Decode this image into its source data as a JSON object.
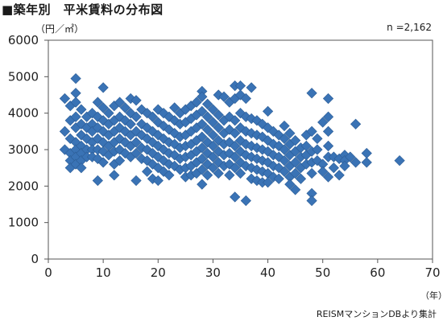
{
  "page": {
    "title": "■築年別　平米賃料の分布図",
    "unit_label": "（円／㎡）",
    "n_label": "n =2,162",
    "x_unit": "（年）",
    "source": "REISMマンションDBより集計"
  },
  "colors": {
    "marker": "#3a73b5",
    "marker_edge": "#2c5d96",
    "plot_bg": "#ffffff",
    "axis": "#555555",
    "outer_bg": "#e9e9e9"
  },
  "chart_data": {
    "type": "scatter",
    "title": "築年別　平米賃料の分布図",
    "xlabel": "（年）",
    "ylabel": "（円／㎡）",
    "xlim": [
      0,
      70
    ],
    "ylim": [
      0,
      6000
    ],
    "xticks": [
      0,
      10,
      20,
      30,
      40,
      50,
      60,
      70
    ],
    "yticks": [
      0,
      1000,
      2000,
      3000,
      4000,
      5000,
      6000
    ],
    "xtick_labels": [
      "0",
      "10",
      "20",
      "30",
      "40",
      "50",
      "60",
      "70"
    ],
    "ytick_labels": [
      "0",
      "1000",
      "2000",
      "3000",
      "4000",
      "5000",
      "6000"
    ],
    "grid": false,
    "marker": "diamond",
    "n": "2,162",
    "series": [
      {
        "points": [
          [
            3,
            4400
          ],
          [
            3,
            3500
          ],
          [
            3,
            3000
          ],
          [
            4,
            4200
          ],
          [
            4,
            3800
          ],
          [
            4,
            3300
          ],
          [
            4,
            2900
          ],
          [
            4,
            2700
          ],
          [
            4,
            2500
          ],
          [
            5,
            4950
          ],
          [
            5,
            4550
          ],
          [
            5,
            4300
          ],
          [
            5,
            3900
          ],
          [
            5,
            3600
          ],
          [
            5,
            3200
          ],
          [
            5,
            3000
          ],
          [
            5,
            2800
          ],
          [
            5,
            2600
          ],
          [
            6,
            4100
          ],
          [
            6,
            3700
          ],
          [
            6,
            3400
          ],
          [
            6,
            3100
          ],
          [
            6,
            2900
          ],
          [
            6,
            2700
          ],
          [
            6,
            2500
          ],
          [
            7,
            3900
          ],
          [
            7,
            3600
          ],
          [
            7,
            3300
          ],
          [
            7,
            3000
          ],
          [
            7,
            2800
          ],
          [
            8,
            4000
          ],
          [
            8,
            3700
          ],
          [
            8,
            3500
          ],
          [
            8,
            3200
          ],
          [
            8,
            3000
          ],
          [
            8,
            2800
          ],
          [
            9,
            4300
          ],
          [
            9,
            3900
          ],
          [
            9,
            3600
          ],
          [
            9,
            3300
          ],
          [
            9,
            3000
          ],
          [
            9,
            2750
          ],
          [
            9,
            2150
          ],
          [
            10,
            4700
          ],
          [
            10,
            4150
          ],
          [
            10,
            3800
          ],
          [
            10,
            3500
          ],
          [
            10,
            3200
          ],
          [
            10,
            2950
          ],
          [
            10,
            2650
          ],
          [
            11,
            4000
          ],
          [
            11,
            3700
          ],
          [
            11,
            3400
          ],
          [
            11,
            3100
          ],
          [
            11,
            2850
          ],
          [
            12,
            4200
          ],
          [
            12,
            3800
          ],
          [
            12,
            3500
          ],
          [
            12,
            3200
          ],
          [
            12,
            2950
          ],
          [
            12,
            2600
          ],
          [
            12,
            2300
          ],
          [
            13,
            4300
          ],
          [
            13,
            3900
          ],
          [
            13,
            3600
          ],
          [
            13,
            3300
          ],
          [
            13,
            3000
          ],
          [
            13,
            2700
          ],
          [
            14,
            4150
          ],
          [
            14,
            3800
          ],
          [
            14,
            3500
          ],
          [
            14,
            3200
          ],
          [
            14,
            2900
          ],
          [
            15,
            4400
          ],
          [
            15,
            4000
          ],
          [
            15,
            3700
          ],
          [
            15,
            3400
          ],
          [
            15,
            3100
          ],
          [
            15,
            2800
          ],
          [
            16,
            4350
          ],
          [
            16,
            3900
          ],
          [
            16,
            3500
          ],
          [
            16,
            3200
          ],
          [
            16,
            2900
          ],
          [
            16,
            2150
          ],
          [
            17,
            4100
          ],
          [
            17,
            3700
          ],
          [
            17,
            3400
          ],
          [
            17,
            3050
          ],
          [
            17,
            2750
          ],
          [
            18,
            4000
          ],
          [
            18,
            3600
          ],
          [
            18,
            3300
          ],
          [
            18,
            3000
          ],
          [
            18,
            2700
          ],
          [
            18,
            2400
          ],
          [
            19,
            3900
          ],
          [
            19,
            3500
          ],
          [
            19,
            3200
          ],
          [
            19,
            2900
          ],
          [
            19,
            2600
          ],
          [
            19,
            2200
          ],
          [
            20,
            4100
          ],
          [
            20,
            3750
          ],
          [
            20,
            3400
          ],
          [
            20,
            3100
          ],
          [
            20,
            2800
          ],
          [
            20,
            2500
          ],
          [
            20,
            2150
          ],
          [
            21,
            4000
          ],
          [
            21,
            3650
          ],
          [
            21,
            3300
          ],
          [
            21,
            3000
          ],
          [
            21,
            2700
          ],
          [
            21,
            2400
          ],
          [
            22,
            3900
          ],
          [
            22,
            3550
          ],
          [
            22,
            3200
          ],
          [
            22,
            2900
          ],
          [
            22,
            2600
          ],
          [
            22,
            2300
          ],
          [
            23,
            4150
          ],
          [
            23,
            3800
          ],
          [
            23,
            3450
          ],
          [
            23,
            3150
          ],
          [
            23,
            2850
          ],
          [
            23,
            2550
          ],
          [
            24,
            4000
          ],
          [
            24,
            3700
          ],
          [
            24,
            3350
          ],
          [
            24,
            3050
          ],
          [
            24,
            2750
          ],
          [
            24,
            2450
          ],
          [
            25,
            4100
          ],
          [
            25,
            3750
          ],
          [
            25,
            3400
          ],
          [
            25,
            3100
          ],
          [
            25,
            2800
          ],
          [
            25,
            2500
          ],
          [
            25,
            2250
          ],
          [
            26,
            4200
          ],
          [
            26,
            3850
          ],
          [
            26,
            3500
          ],
          [
            26,
            3150
          ],
          [
            26,
            2850
          ],
          [
            26,
            2550
          ],
          [
            26,
            2300
          ],
          [
            27,
            4300
          ],
          [
            27,
            3950
          ],
          [
            27,
            3600
          ],
          [
            27,
            3250
          ],
          [
            27,
            2950
          ],
          [
            27,
            2650
          ],
          [
            27,
            2350
          ],
          [
            28,
            4600
          ],
          [
            28,
            4450
          ],
          [
            28,
            4050
          ],
          [
            28,
            3700
          ],
          [
            28,
            3350
          ],
          [
            28,
            3050
          ],
          [
            28,
            2750
          ],
          [
            28,
            2450
          ],
          [
            28,
            2050
          ],
          [
            29,
            4250
          ],
          [
            29,
            3900
          ],
          [
            29,
            3550
          ],
          [
            29,
            3200
          ],
          [
            29,
            2900
          ],
          [
            29,
            2600
          ],
          [
            29,
            2300
          ],
          [
            30,
            4100
          ],
          [
            30,
            3750
          ],
          [
            30,
            3400
          ],
          [
            30,
            3100
          ],
          [
            30,
            2800
          ],
          [
            30,
            2500
          ],
          [
            31,
            4500
          ],
          [
            31,
            3950
          ],
          [
            31,
            3600
          ],
          [
            31,
            3250
          ],
          [
            31,
            2950
          ],
          [
            31,
            2650
          ],
          [
            31,
            2350
          ],
          [
            32,
            4450
          ],
          [
            32,
            3800
          ],
          [
            32,
            3450
          ],
          [
            32,
            3150
          ],
          [
            32,
            2850
          ],
          [
            32,
            2550
          ],
          [
            33,
            4300
          ],
          [
            33,
            3900
          ],
          [
            33,
            3550
          ],
          [
            33,
            3200
          ],
          [
            33,
            2900
          ],
          [
            33,
            2600
          ],
          [
            33,
            2300
          ],
          [
            34,
            4750
          ],
          [
            34,
            4400
          ],
          [
            34,
            3800
          ],
          [
            34,
            3450
          ],
          [
            34,
            3100
          ],
          [
            34,
            2800
          ],
          [
            34,
            2500
          ],
          [
            34,
            1700
          ],
          [
            35,
            4750
          ],
          [
            35,
            4500
          ],
          [
            35,
            4000
          ],
          [
            35,
            3600
          ],
          [
            35,
            3250
          ],
          [
            35,
            2950
          ],
          [
            35,
            2650
          ],
          [
            35,
            2350
          ],
          [
            36,
            4400
          ],
          [
            36,
            3900
          ],
          [
            36,
            3500
          ],
          [
            36,
            3150
          ],
          [
            36,
            2850
          ],
          [
            36,
            2550
          ],
          [
            36,
            1600
          ],
          [
            37,
            4700
          ],
          [
            37,
            3850
          ],
          [
            37,
            3450
          ],
          [
            37,
            3100
          ],
          [
            37,
            2800
          ],
          [
            37,
            2500
          ],
          [
            37,
            2200
          ],
          [
            38,
            3800
          ],
          [
            38,
            3400
          ],
          [
            38,
            3050
          ],
          [
            38,
            2750
          ],
          [
            38,
            2450
          ],
          [
            38,
            2150
          ],
          [
            39,
            3700
          ],
          [
            39,
            3350
          ],
          [
            39,
            3000
          ],
          [
            39,
            2700
          ],
          [
            39,
            2400
          ],
          [
            39,
            2100
          ],
          [
            40,
            4050
          ],
          [
            40,
            3600
          ],
          [
            40,
            3250
          ],
          [
            40,
            2950
          ],
          [
            40,
            2650
          ],
          [
            40,
            2350
          ],
          [
            40,
            2100
          ],
          [
            41,
            3500
          ],
          [
            41,
            3150
          ],
          [
            41,
            2850
          ],
          [
            41,
            2550
          ],
          [
            41,
            2250
          ],
          [
            42,
            3400
          ],
          [
            42,
            3100
          ],
          [
            42,
            2800
          ],
          [
            42,
            2500
          ],
          [
            42,
            2200
          ],
          [
            43,
            3650
          ],
          [
            43,
            3300
          ],
          [
            43,
            3000
          ],
          [
            43,
            2700
          ],
          [
            43,
            2400
          ],
          [
            44,
            3450
          ],
          [
            44,
            3150
          ],
          [
            44,
            2850
          ],
          [
            44,
            2550
          ],
          [
            44,
            2250
          ],
          [
            44,
            2050
          ],
          [
            45,
            3250
          ],
          [
            45,
            2950
          ],
          [
            45,
            2650
          ],
          [
            45,
            2350
          ],
          [
            45,
            1900
          ],
          [
            46,
            3050
          ],
          [
            46,
            2800
          ],
          [
            46,
            2500
          ],
          [
            46,
            2200
          ],
          [
            47,
            3400
          ],
          [
            47,
            3100
          ],
          [
            47,
            2850
          ],
          [
            47,
            2600
          ],
          [
            48,
            4550
          ],
          [
            48,
            3500
          ],
          [
            48,
            2950
          ],
          [
            48,
            2650
          ],
          [
            48,
            2350
          ],
          [
            48,
            1800
          ],
          [
            48,
            1600
          ],
          [
            49,
            3300
          ],
          [
            49,
            3000
          ],
          [
            49,
            2700
          ],
          [
            50,
            3750
          ],
          [
            50,
            2600
          ],
          [
            50,
            2400
          ],
          [
            51,
            4400
          ],
          [
            51,
            3900
          ],
          [
            51,
            3500
          ],
          [
            51,
            3100
          ],
          [
            51,
            2800
          ],
          [
            51,
            2250
          ],
          [
            52,
            2800
          ],
          [
            52,
            2500
          ],
          [
            53,
            2750
          ],
          [
            53,
            2300
          ],
          [
            54,
            2850
          ],
          [
            54,
            2700
          ],
          [
            54,
            2550
          ],
          [
            55,
            2800
          ],
          [
            56,
            3700
          ],
          [
            56,
            2650
          ],
          [
            58,
            2900
          ],
          [
            58,
            2650
          ],
          [
            64,
            2700
          ]
        ]
      }
    ]
  }
}
